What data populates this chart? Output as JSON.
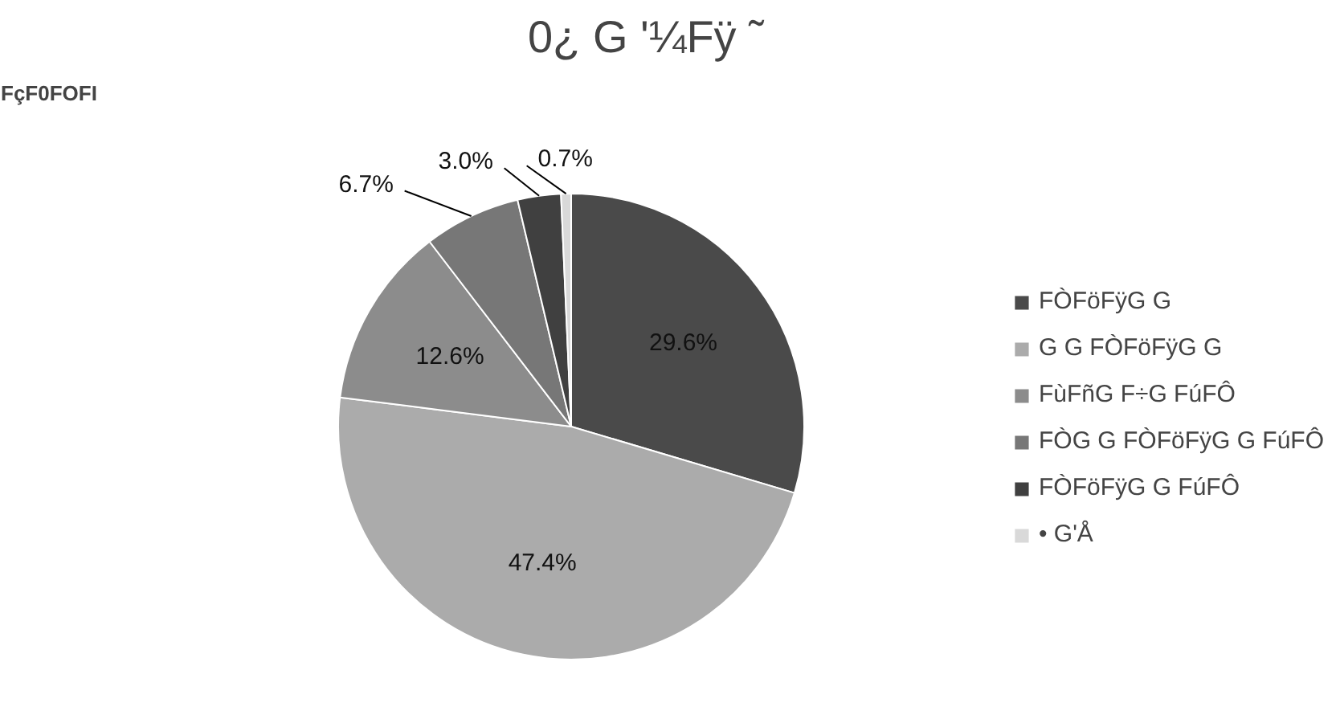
{
  "chart_data": {
    "type": "pie",
    "title": "0¿  G    '¼Fÿ ˜",
    "annotations": [
      "FçF0FOFI"
    ],
    "categories": [
      "FÒFöFÿG G",
      "G G FÒFöFÿG G",
      "FùFñG F÷G FúFÔ",
      "FÒG G FÒFöFÿG G FúFÔ",
      "FÒFöFÿG G FúFÔ",
      "• G'Å"
    ],
    "values": [
      29.6,
      47.4,
      12.6,
      6.7,
      3.0,
      0.7
    ],
    "colors": [
      "#4a4a4a",
      "#ababab",
      "#8c8c8c",
      "#777777",
      "#404040",
      "#d9d9d9"
    ],
    "value_labels": [
      "29.6%",
      "47.4%",
      "12.6%",
      "6.7%",
      "3.0%",
      "0.7%"
    ],
    "legend": "right"
  }
}
